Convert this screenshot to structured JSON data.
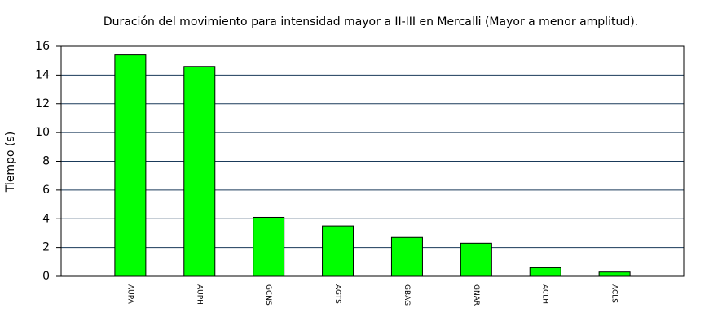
{
  "chart_data": {
    "type": "bar",
    "title": "Duración del movimiento para intensidad mayor a II-III en Mercalli (Mayor a menor amplitud).",
    "y_label": "Tiempo (s)",
    "categories": [
      "AUPA",
      "AUPH",
      "GCNS",
      "AGTS",
      "GBAG",
      "GNAR",
      "ACLH",
      "ACLS"
    ],
    "values": [
      15.4,
      14.6,
      4.1,
      3.5,
      2.7,
      2.3,
      0.6,
      0.3
    ],
    "color": "#00ff00",
    "ylim": [
      0,
      16
    ],
    "yticks": [
      0,
      2,
      4,
      6,
      8,
      10,
      12,
      14,
      16
    ],
    "grid": true
  }
}
